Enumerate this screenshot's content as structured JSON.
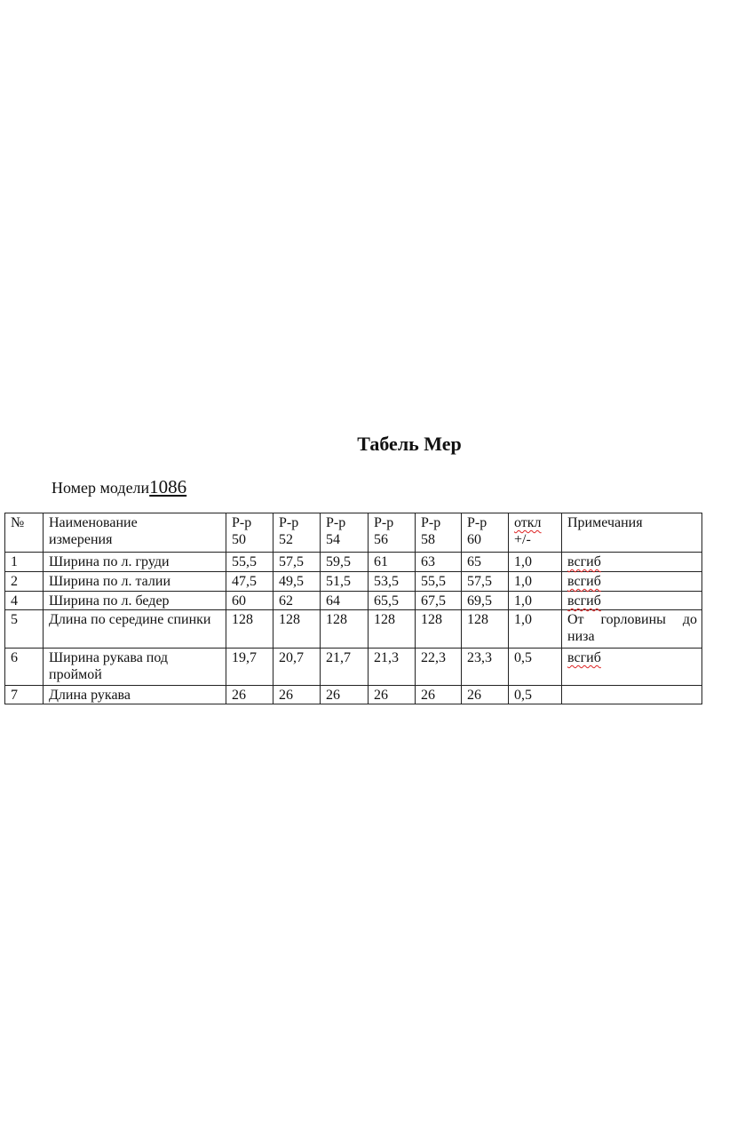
{
  "title": "Табель Мер",
  "model_label": "Номер модели",
  "model_number": "1086",
  "table": {
    "headers": [
      "№",
      "Наименование измерения",
      "Р-р 50",
      "Р-р 52",
      "Р-р 54",
      "Р-р 56",
      "Р-р 58",
      "Р-р 60",
      "откл +/-",
      "Примечания"
    ],
    "header_lines": [
      [
        "№",
        ""
      ],
      [
        "Наименование",
        "измерения"
      ],
      [
        "Р-р",
        "50"
      ],
      [
        "Р-р",
        "52"
      ],
      [
        "Р-р",
        "54"
      ],
      [
        "Р-р",
        "56"
      ],
      [
        "Р-р",
        "58"
      ],
      [
        "Р-р",
        "60"
      ],
      [
        "откл",
        "+/-"
      ],
      [
        "Примечания",
        ""
      ]
    ],
    "rows": [
      [
        "1",
        "Ширина по л. груди",
        "55,5",
        "57,5",
        "59,5",
        "61",
        "63",
        "65",
        "1,0",
        "всгиб"
      ],
      [
        "2",
        "Ширина по л. талии",
        "47,5",
        "49,5",
        "51,5",
        "53,5",
        "55,5",
        "57,5",
        "1,0",
        "всгиб"
      ],
      [
        "4",
        "Ширина по л. бедер",
        "60",
        "62",
        "64",
        "65,5",
        "67,5",
        "69,5",
        "1,0",
        "всгиб"
      ],
      [
        "5",
        "Длина по середине спинки",
        "128",
        "128",
        "128",
        "128",
        "128",
        "128",
        "1,0",
        "От горловины до низа"
      ],
      [
        "6",
        "Ширина рукава под проймой",
        "19,7",
        "20,7",
        "21,7",
        "21,3",
        "22,3",
        "23,3",
        "0,5",
        "всгиб"
      ],
      [
        "7",
        "Длина рукава",
        "26",
        "26",
        "26",
        "26",
        "26",
        "26",
        "0,5",
        ""
      ]
    ]
  }
}
